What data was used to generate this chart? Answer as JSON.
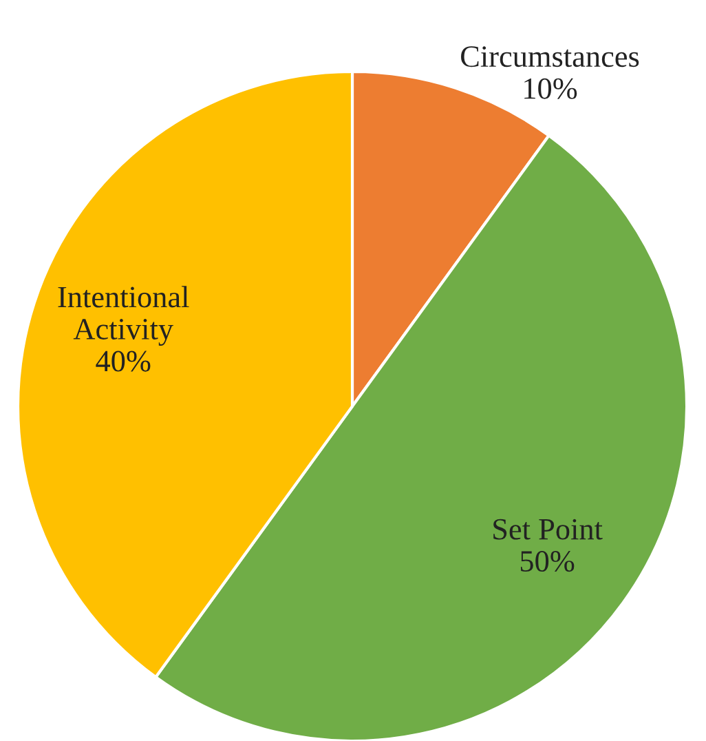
{
  "chart_data": {
    "type": "pie",
    "categories": [
      "Circumstances",
      "Set Point",
      "Intentional Activity"
    ],
    "values": [
      10,
      50,
      40
    ],
    "colors": [
      "#ed7d31",
      "#70ad47",
      "#ffc000"
    ],
    "value_labels": [
      "10%",
      "50%",
      "40%"
    ]
  }
}
